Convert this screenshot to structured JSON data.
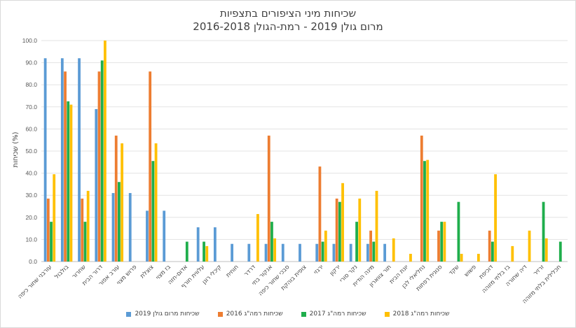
{
  "chart_data": {
    "type": "bar",
    "title": "שכיחות מיני הציפורים בתצפיות",
    "subtitle": "מרום גולן 2019 - רמת-הגולן 2016-2018",
    "ylabel": "שכיחות (%)",
    "ylim": [
      0,
      100
    ],
    "ytick_labels": [
      "0.0",
      "10.0",
      "20.0",
      "30.0",
      "40.0",
      "50.0",
      "60.0",
      "70.0",
      "80.0",
      "90.0",
      "100.0"
    ],
    "grid": true,
    "legend_position": "bottom",
    "categories": [
      "עורבני שחור כיפה",
      "בולבול",
      "שחרור",
      "דרור הבית",
      "עורב אפור",
      "פרוש מצוי",
      "צוצלת",
      "בז מצוי",
      "אדום-חזה",
      "עלווית חורף",
      "קיכלי רונן",
      "חוחית",
      "דרדר",
      "אנקור בתי",
      "סבכי שחור כיפה",
      "צופית בוהקת",
      "ירגזי",
      "ירקון",
      "נקר סורי",
      "מינה הודית",
      "תור צווארון",
      "יונת הבית",
      "נחליאלי לבן",
      "סנונית רפתות",
      "שקד",
      "פשוש",
      "דוכיפת",
      "בז בלתי מזוהה",
      "דיה שחורה",
      "זרזיר",
      "חכלילית בלתי מזוהה"
    ],
    "series": [
      {
        "name": "שכיחות מרום גולן 2019",
        "color": "#5b9bd5",
        "values": [
          92,
          92,
          92,
          69,
          31,
          31,
          23,
          23,
          0,
          15.5,
          15.5,
          8,
          8,
          8,
          8,
          8,
          8,
          8,
          8,
          8,
          8,
          0,
          0,
          0,
          0,
          0,
          0,
          0,
          0,
          0,
          0
        ]
      },
      {
        "name": "שכיחות רמה\"ג 2016",
        "color": "#ed7d31",
        "values": [
          28.5,
          86,
          28.5,
          86,
          57,
          0,
          86,
          0,
          0,
          0,
          0,
          0,
          0,
          57,
          0,
          0,
          43,
          28.5,
          0,
          14,
          0,
          0,
          57,
          14,
          0,
          0,
          14,
          0,
          0,
          0,
          0
        ]
      },
      {
        "name": "שכיחות רמה\"ג 2017",
        "color": "#1fae4c",
        "values": [
          18,
          72.5,
          18,
          91,
          36,
          0,
          45.5,
          0,
          9,
          9,
          0,
          0,
          0,
          18,
          0,
          0,
          9,
          27,
          18,
          9,
          0,
          0,
          45.5,
          18,
          27,
          0,
          9,
          0,
          0,
          27,
          9
        ]
      },
      {
        "name": "שכיחות רמה\"ג 2018",
        "color": "#ffc000",
        "values": [
          39.5,
          71,
          32,
          100,
          53.5,
          0,
          53.5,
          0,
          0,
          7,
          0,
          0,
          21.5,
          10.5,
          0,
          0,
          14,
          35.5,
          28.5,
          32,
          10.5,
          3.5,
          46,
          18,
          3.5,
          3.5,
          39.5,
          7,
          14,
          10.5,
          0
        ]
      }
    ]
  }
}
